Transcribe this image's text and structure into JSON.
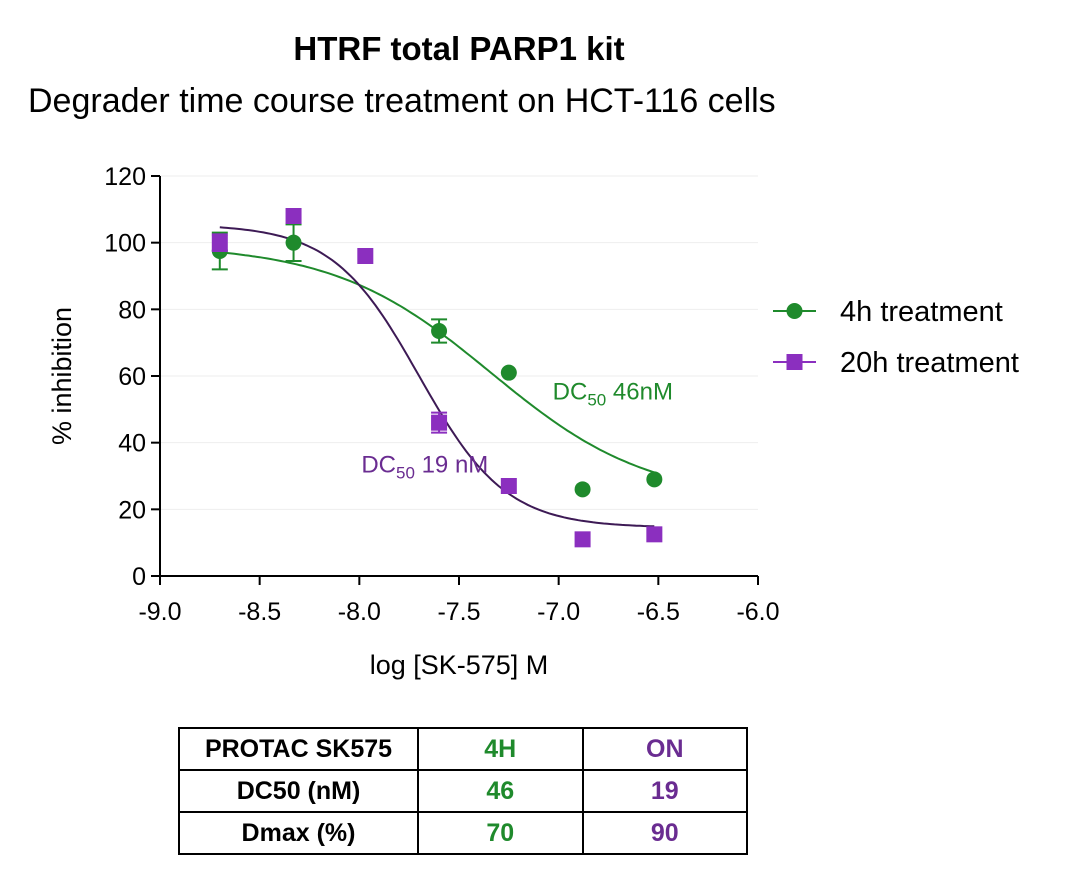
{
  "title": "HTRF total PARP1 kit",
  "subtitle": "Degrader time course treatment on HCT-116 cells",
  "colors": {
    "green": "#1f8a2c",
    "purple": "#8b2fbf",
    "purple_text": "#6a2c91",
    "purple_curve": "#3d1a55"
  },
  "chart_data": {
    "type": "scatter",
    "title": "HTRF total PARP1 kit",
    "subtitle": "Degrader time course treatment on HCT-116 cells",
    "xlabel": "log [SK-575] M",
    "ylabel": "% inhibition",
    "xlim": [
      -9.0,
      -6.0
    ],
    "ylim": [
      0,
      120
    ],
    "xticks": [
      -9.0,
      -8.5,
      -8.0,
      -7.5,
      -7.0,
      -6.5,
      -6.0
    ],
    "xtick_labels": [
      "-9.0",
      "-8.5",
      "-8.0",
      "-7.5",
      "-7.0",
      "-6.5",
      "-6.0"
    ],
    "yticks": [
      0,
      20,
      40,
      60,
      80,
      100,
      120
    ],
    "ytick_labels": [
      "0",
      "20",
      "40",
      "60",
      "80",
      "100",
      "120"
    ],
    "grid": true,
    "legend_position": "right",
    "series": [
      {
        "name": "4h treatment",
        "marker": "circle",
        "color": "#1f8a2c",
        "x": [
          -8.7,
          -8.33,
          -7.6,
          -7.25,
          -6.88,
          -6.52
        ],
        "y": [
          97.5,
          100,
          73.5,
          61,
          26,
          29
        ],
        "err": [
          5.5,
          5.5,
          3.5,
          0,
          0,
          0
        ],
        "fit": {
          "bottom": 22.5,
          "top": 99.5,
          "logdc50": -7.34,
          "hill": 1.1,
          "xrange": [
            -8.7,
            -6.52
          ]
        },
        "annotation": {
          "prefix": "DC",
          "sub": "50",
          "suffix": " 46nM",
          "x": -7.03,
          "y": 53
        }
      },
      {
        "name": "20h treatment",
        "marker": "square",
        "color": "#8b2fbf",
        "x": [
          -8.7,
          -8.33,
          -7.97,
          -7.6,
          -7.25,
          -6.88,
          -6.52
        ],
        "y": [
          100,
          108,
          96,
          46,
          27,
          11,
          12.5
        ],
        "err": [
          2.5,
          0,
          0,
          3,
          0,
          0,
          0
        ],
        "fit": {
          "bottom": 14.5,
          "top": 105.5,
          "logdc50": -7.7,
          "hill": 2.0,
          "xrange": [
            -8.7,
            -6.52
          ]
        },
        "annotation": {
          "prefix": "DC",
          "sub": "50",
          "suffix": " 19 nM",
          "x": -7.99,
          "y": 31
        }
      }
    ]
  },
  "table": {
    "header": [
      "PROTAC SK575",
      "4H",
      "ON"
    ],
    "rows": [
      [
        "DC50 (nM)",
        "46",
        "19"
      ],
      [
        "Dmax (%)",
        "70",
        "90"
      ]
    ]
  }
}
